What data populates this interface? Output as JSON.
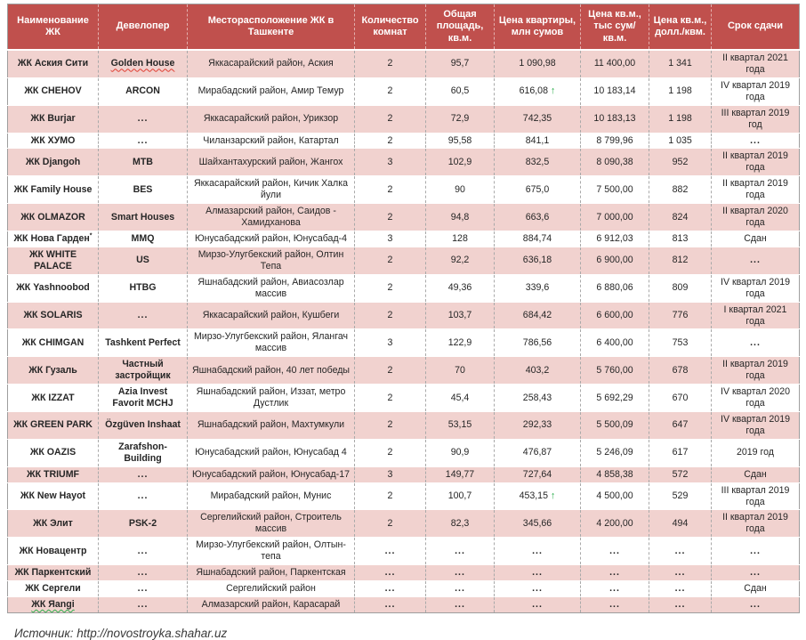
{
  "table": {
    "keys": [
      "name",
      "developer",
      "location",
      "rooms",
      "area",
      "price",
      "sqm",
      "usd",
      "deadline"
    ],
    "columns": [
      "Наименование ЖК",
      "Девелопер",
      "Месторасположение ЖК в Ташкенте",
      "Количество комнат",
      "Общая площадь, кв.м.",
      "Цена квартиры, млн сумов",
      "Цена кв.м., тыс сум/кв.м.",
      "Цена кв.м., долл./квм.",
      "Срок сдачи"
    ],
    "rows": [
      {
        "name": "ЖК Аския Сити",
        "developer": "Golden House",
        "dev_squiggle": true,
        "location": "Яккасарайский район, Аския",
        "rooms": "2",
        "area": "95,7",
        "price": "1 090,98",
        "sqm": "11 400,00",
        "usd": "1 341",
        "deadline": "II квартал 2021 года"
      },
      {
        "name": "ЖК CHEHOV",
        "developer": "ARCON",
        "location": "Мирабадский район, Амир Темур",
        "rooms": "2",
        "area": "60,5",
        "price": "616,08",
        "price_up": true,
        "sqm": "10 183,14",
        "usd": "1 198",
        "deadline": "IV квартал 2019 года"
      },
      {
        "name": "ЖК Burjar",
        "developer": "...",
        "location": "Яккасарайский район, Урикзор",
        "rooms": "2",
        "area": "72,9",
        "price": "742,35",
        "sqm": "10 183,13",
        "usd": "1 198",
        "deadline": "III квартал 2019 год"
      },
      {
        "name": "ЖК ХУМО",
        "developer": "...",
        "location": "Чиланзарский район, Катартал",
        "rooms": "2",
        "area": "95,58",
        "price": "841,1",
        "sqm": "8 799,96",
        "usd": "1 035",
        "deadline": "..."
      },
      {
        "name": "ЖК Djangoh",
        "developer": "MTB",
        "location": "Шайхантахурский район, Жангох",
        "rooms": "3",
        "area": "102,9",
        "price": "832,5",
        "sqm": "8 090,38",
        "usd": "952",
        "deadline": "II квартал 2019 года"
      },
      {
        "name": "ЖК Family House",
        "developer": "BES",
        "location": "Яккасарайский район, Кичик Халка йули",
        "rooms": "2",
        "area": "90",
        "price": "675,0",
        "sqm": "7 500,00",
        "usd": "882",
        "deadline": "II квартал 2019 года"
      },
      {
        "name": "ЖК OLMAZOR",
        "developer": "Smart Houses",
        "location": "Алмазарский район, Саидов - Хамидханова",
        "rooms": "2",
        "area": "94,8",
        "price": "663,6",
        "sqm": "7 000,00",
        "usd": "824",
        "deadline": "II квартал 2020 года"
      },
      {
        "name": "ЖК Нова Гарден*",
        "developer": "MMQ",
        "location": "Юнусабадский район, Юнусабад-4",
        "rooms": "3",
        "area": "128",
        "price": "884,74",
        "sqm": "6 912,03",
        "usd": "813",
        "deadline": "Сдан"
      },
      {
        "name": "ЖК WHITE PALACE",
        "developer": "US",
        "location": "Мирзо-Улугбекский район, Олтин Тепа",
        "rooms": "2",
        "area": "92,2",
        "price": "636,18",
        "sqm": "6 900,00",
        "usd": "812",
        "deadline": "..."
      },
      {
        "name": "ЖК Yashnoobod",
        "developer": "HTBG",
        "location": "Яшнабадский район, Авиасозлар массив",
        "rooms": "2",
        "area": "49,36",
        "price": "339,6",
        "sqm": "6 880,06",
        "usd": "809",
        "deadline": "IV квартал 2019 года"
      },
      {
        "name": "ЖК SOLARIS",
        "developer": "...",
        "location": "Яккасарайский район, Кушбеги",
        "rooms": "2",
        "area": "103,7",
        "price": "684,42",
        "sqm": "6 600,00",
        "usd": "776",
        "deadline": "I квартал 2021 года"
      },
      {
        "name": "ЖК CHIMGAN",
        "developer": "Tashkent Perfect",
        "location": "Мирзо-Улугбекский район, Ялангач массив",
        "rooms": "3",
        "area": "122,9",
        "price": "786,56",
        "sqm": "6 400,00",
        "usd": "753",
        "deadline": "..."
      },
      {
        "name": "ЖК Гузаль",
        "developer": "Частный застройщик",
        "location": "Яшнабадский район, 40 лет победы",
        "rooms": "2",
        "area": "70",
        "price": "403,2",
        "sqm": "5 760,00",
        "usd": "678",
        "deadline": "II квартал 2019 года"
      },
      {
        "name": "ЖК IZZAT",
        "developer": "Azia Invest Favorit MCHJ",
        "location": "Яшнабадский район, Иззат, метро Дустлик",
        "rooms": "2",
        "area": "45,4",
        "price": "258,43",
        "sqm": "5 692,29",
        "usd": "670",
        "deadline": "IV квартал 2020 года"
      },
      {
        "name": "ЖК GREEN PARK",
        "developer": "Özgüven Inshaat",
        "location": "Яшнабадский район, Махтумкули",
        "rooms": "2",
        "area": "53,15",
        "price": "292,33",
        "sqm": "5 500,09",
        "usd": "647",
        "deadline": "IV квартал 2019 года"
      },
      {
        "name": "ЖК OAZIS",
        "developer": "Zarafshon-Building",
        "location": "Юнусабадский район, Юнусабад 4",
        "rooms": "2",
        "area": "90,9",
        "price": "476,87",
        "sqm": "5 246,09",
        "usd": "617",
        "deadline": "2019 год"
      },
      {
        "name": "ЖК TRIUMF",
        "developer": "...",
        "location": "Юнусабадский район, Юнусабад-17",
        "rooms": "3",
        "area": "149,77",
        "price": "727,64",
        "sqm": "4 858,38",
        "usd": "572",
        "deadline": "Сдан"
      },
      {
        "name": "ЖК New Hayot",
        "developer": "...",
        "location": "Мирабадский район, Мунис",
        "rooms": "2",
        "area": "100,7",
        "price": "453,15",
        "price_up": true,
        "sqm": "4 500,00",
        "usd": "529",
        "deadline": "III квартал 2019 года"
      },
      {
        "name": "ЖК Элит",
        "developer": "PSK-2",
        "location": "Сергелийский район, Строитель массив",
        "rooms": "2",
        "area": "82,3",
        "price": "345,66",
        "sqm": "4 200,00",
        "usd": "494",
        "deadline": "II квартал 2019 года"
      },
      {
        "name": "ЖК Новацентр",
        "developer": "...",
        "location": "Мирзо-Улугбекский район, Олтын-тепа",
        "rooms": "...",
        "area": "...",
        "price": "...",
        "sqm": "...",
        "usd": "...",
        "deadline": "..."
      },
      {
        "name": "ЖК Паркентский",
        "developer": "...",
        "location": "Яшнабадский район, Паркентская",
        "rooms": "...",
        "area": "...",
        "price": "...",
        "sqm": "...",
        "usd": "...",
        "deadline": "..."
      },
      {
        "name": "ЖК Сергели",
        "developer": "...",
        "location": "Сергелийский район",
        "rooms": "...",
        "area": "...",
        "price": "...",
        "sqm": "...",
        "usd": "...",
        "deadline": "Сдан"
      },
      {
        "name": "ЖК Яangi",
        "developer": "...",
        "name_squiggle": true,
        "location": "Алмазарский район, Карасарай",
        "rooms": "...",
        "area": "...",
        "price": "...",
        "sqm": "...",
        "usd": "...",
        "deadline": "..."
      }
    ]
  },
  "source_line": "Источник: http://novostroyka.shahar.uz",
  "icons": {
    "trend_up_arrow": "↑"
  },
  "colors": {
    "header_bg": "#C0504D",
    "header_text": "#FFFFFF",
    "band_row_bg": "#F1D2CF",
    "white_row_bg": "#FFFFFF",
    "body_text": "#262626",
    "trend_up_green": "#2EAE4E",
    "spellcheck_red": "#E03C31",
    "spellcheck_green": "#2EAE4E"
  }
}
